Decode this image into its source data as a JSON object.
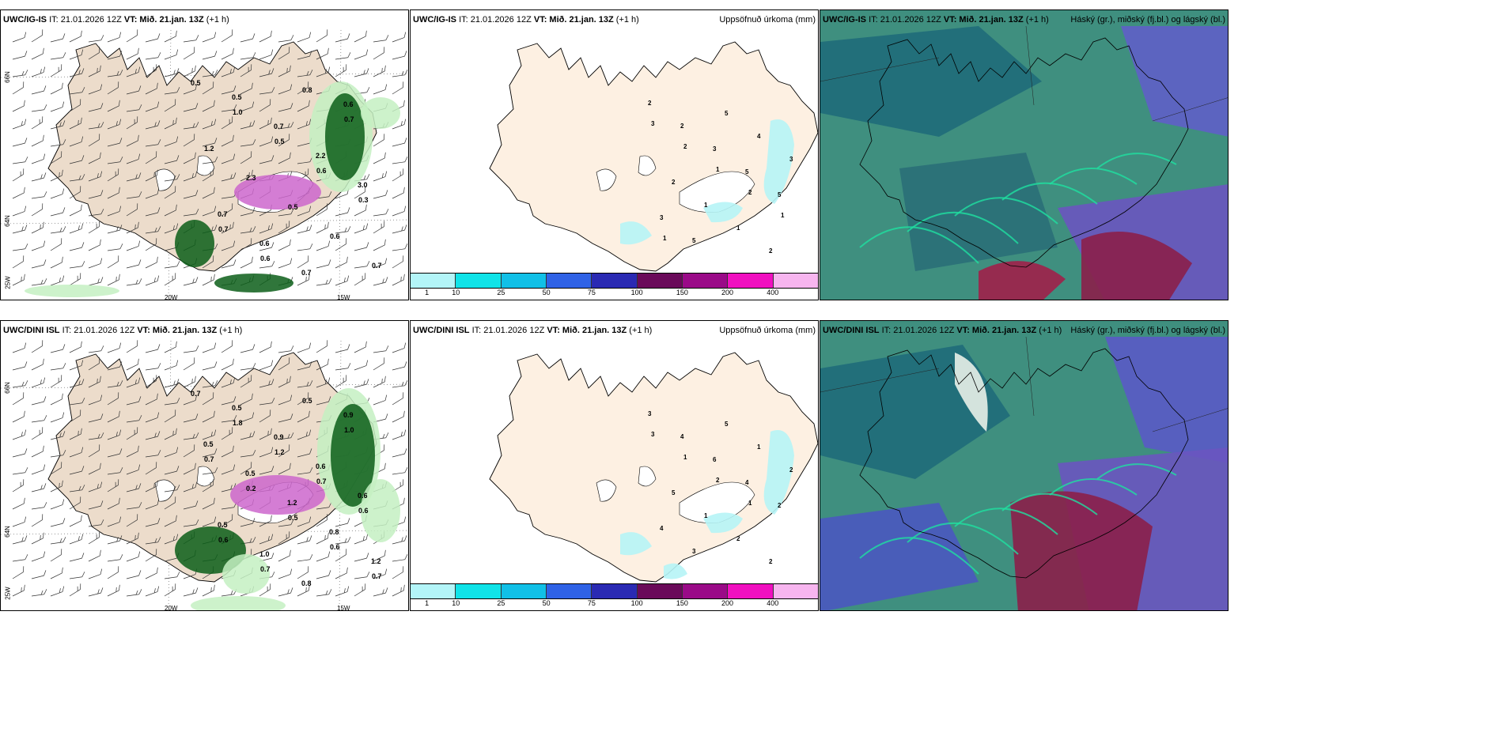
{
  "top": {
    "wind_panel": {
      "model": "UWC/IG-IS",
      "it": "IT: 21.01.2026 12Z",
      "vt_label": "VT:",
      "vt": "Mið. 21.jan. 13Z",
      "lead": "(+1 h)",
      "values": [
        "0.5",
        "1.0",
        "0.5",
        "0.6",
        "0.3",
        "0.7",
        "0.6",
        "0.8",
        "0.7",
        "1.2",
        "2.3",
        "0.5",
        "0.6",
        "0.7",
        "0.5",
        "0.7",
        "2.2",
        "3.0",
        "0.7",
        "0.6",
        "0.7",
        "0.6"
      ]
    },
    "precip_panel": {
      "model": "UWC/IG-IS",
      "it": "IT: 21.01.2026 12Z",
      "vt_label": "VT:",
      "vt": "Mið. 21.jan. 13Z",
      "lead": "(+1 h)",
      "title": "Uppsöfnuð úrkoma (mm)",
      "values": [
        "2",
        "2",
        "3",
        "5",
        "5",
        "3",
        "5",
        "5",
        "4",
        "3",
        "2",
        "1",
        "1",
        "2",
        "3",
        "2",
        "1",
        "2",
        "1",
        "1"
      ]
    },
    "cloud_panel": {
      "model": "UWC/IG-IS",
      "it": "IT: 21.01.2026 12Z",
      "vt_label": "VT:",
      "vt": "Mið. 21.jan. 13Z",
      "lead": "(+1 h)",
      "title": "Háský (gr.), miðský (fj.bl.) og lágský (bl.)"
    }
  },
  "bottom": {
    "wind_panel": {
      "model": "UWC/DINI ISL",
      "it": "IT: 21.01.2026 12Z",
      "vt_label": "VT:",
      "vt": "Mið. 21.jan. 13Z",
      "lead": "(+1 h)",
      "values": [
        "0.7",
        "1.8",
        "1.2",
        "0.7",
        "0.6",
        "0.6",
        "0.7",
        "0.5",
        "1.0",
        "0.7",
        "0.2",
        "0.5",
        "0.6",
        "0.7",
        "0.5",
        "0.9",
        "0.6",
        "0.6",
        "0.5",
        "1.0",
        "0.8",
        "0.9",
        "0.5",
        "0.5",
        "1.2",
        "0.8",
        "1.2"
      ]
    },
    "precip_panel": {
      "model": "UWC/DINI ISL",
      "it": "IT: 21.01.2026 12Z",
      "vt_label": "VT:",
      "vt": "Mið. 21.jan. 13Z",
      "lead": "(+1 h)",
      "title": "Uppsöfnuð úrkoma (mm)",
      "values": [
        "3",
        "4",
        "6",
        "4",
        "2",
        "4",
        "3",
        "5",
        "1",
        "2",
        "5",
        "1",
        "2",
        "2",
        "3",
        "1",
        "2",
        "1"
      ]
    },
    "cloud_panel": {
      "model": "UWC/DINI ISL",
      "it": "IT: 21.01.2026 12Z",
      "vt_label": "VT:",
      "vt": "Mið. 21.jan. 13Z",
      "lead": "(+1 h)",
      "title": "Háský (gr.), miðský (fj.bl.) og lágský (bl.)"
    }
  },
  "axis": {
    "lat_top": "66N",
    "lat_mid": "64N",
    "lat_bot": "25W",
    "lon_left": "20W",
    "lon_right": "15W"
  },
  "colorbar": {
    "colors": [
      "#b3f5f8",
      "#10e3e8",
      "#11c0e7",
      "#2f62e6",
      "#2a2ab3",
      "#6a0a5a",
      "#9a0a88",
      "#f010c0",
      "#f7b5ef"
    ],
    "ticks": [
      "1",
      "10",
      "25",
      "50",
      "75",
      "100",
      "150",
      "200",
      "400"
    ]
  },
  "colors": {
    "land": "#ecdccb",
    "land_precip": "#fdf0e2",
    "green_light": "#c4f0c2",
    "green_dark": "#0c5e19",
    "magenta": "#cc66cc",
    "cyan": "#b6f4f6"
  }
}
